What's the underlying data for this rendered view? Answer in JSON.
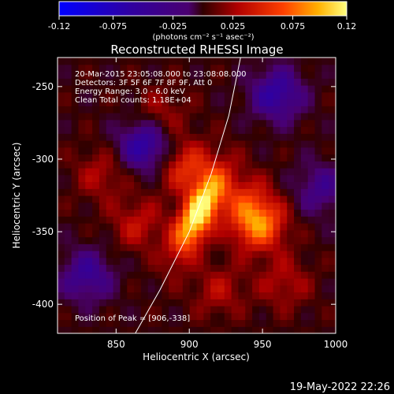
{
  "colorbar": {
    "ticks": [
      "-0.12",
      "-0.075",
      "-0.025",
      "0.025",
      "0.075",
      "0.12"
    ],
    "tick_values": [
      -0.12,
      -0.075,
      -0.025,
      0.025,
      0.075,
      0.12
    ],
    "range": [
      -0.12,
      0.12
    ],
    "units": "(photons cm⁻² s⁻¹ asec⁻²)"
  },
  "chart_data": {
    "type": "heatmap",
    "title": "Reconstructed RHESSI Image",
    "xlabel": "Heliocentric X (arcsec)",
    "ylabel": "Heliocentric Y (arcsec)",
    "xlim": [
      810,
      1000
    ],
    "ylim": [
      -420,
      -230
    ],
    "x_ticks": [
      850,
      900,
      950,
      1000
    ],
    "y_ticks": [
      -250,
      -300,
      -350,
      -400
    ],
    "annotations": [
      "20-Mar-2015 23:05:08.000 to 23:08:08.000",
      "Detectors: 3F 5F 6F 7F 8F 9F, Att 0",
      "Energy Range: 3.0 - 6.0 keV",
      "Clean     Total counts: 1.18E+04"
    ],
    "peak_label": "Position of Peak = [906,-338]",
    "peak": {
      "x": 906,
      "y": -338,
      "value": 0.12
    },
    "sources": [
      {
        "x": 906,
        "y": -338,
        "value": 0.12
      },
      {
        "x": 898,
        "y": -305,
        "value": 0.055
      },
      {
        "x": 947,
        "y": -344,
        "value": 0.085
      },
      {
        "x": 935,
        "y": -325,
        "value": 0.035
      },
      {
        "x": 865,
        "y": -345,
        "value": 0.035
      },
      {
        "x": 840,
        "y": -310,
        "value": 0.03
      },
      {
        "x": 920,
        "y": -390,
        "value": 0.03
      },
      {
        "x": 965,
        "y": -385,
        "value": 0.03
      },
      {
        "x": 880,
        "y": -270,
        "value": 0.03
      },
      {
        "x": 870,
        "y": -290,
        "value": -0.07
      },
      {
        "x": 960,
        "y": -255,
        "value": -0.06
      },
      {
        "x": 830,
        "y": -380,
        "value": -0.05
      },
      {
        "x": 990,
        "y": -320,
        "value": -0.04
      }
    ],
    "limb_curve": [
      [
        862,
        -422
      ],
      [
        880,
        -390
      ],
      [
        900,
        -350
      ],
      [
        915,
        -310
      ],
      [
        927,
        -270
      ],
      [
        935,
        -230
      ]
    ]
  },
  "footer": {
    "date": "19-May-2022 22:26"
  }
}
